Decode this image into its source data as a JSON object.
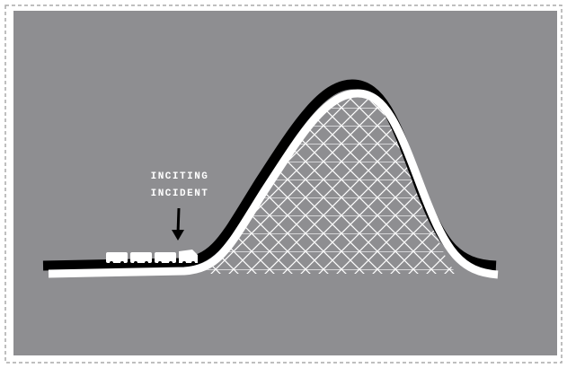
{
  "label": {
    "line1": "INCITING",
    "line2": "INCIDENT"
  }
}
